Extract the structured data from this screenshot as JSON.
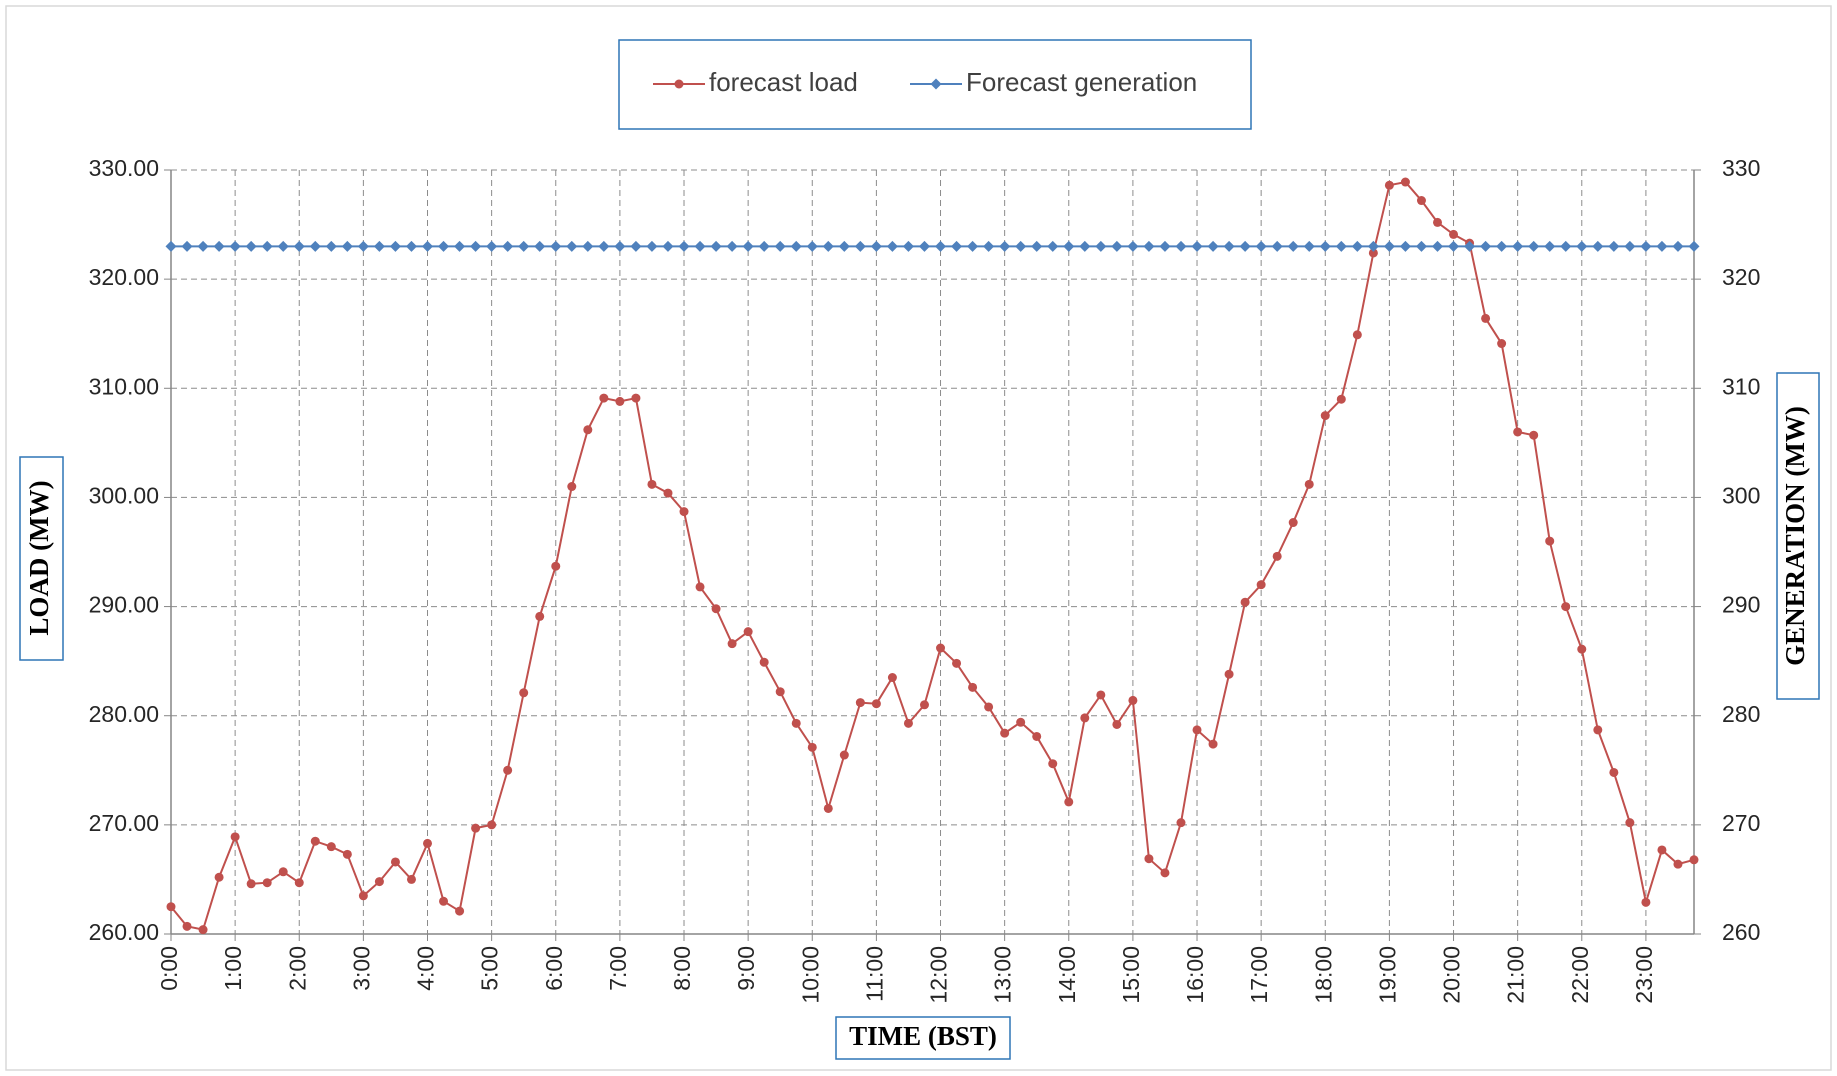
{
  "chart_data": {
    "type": "line",
    "x_label": "TIME (BST)",
    "y_label": "LOAD (MW)",
    "y2_label": "GENERATION (MW)",
    "categories": [
      "0:00",
      null,
      null,
      null,
      "1:00",
      null,
      null,
      null,
      "2:00",
      null,
      null,
      null,
      "3:00",
      null,
      null,
      null,
      "4:00",
      null,
      null,
      null,
      "5:00",
      null,
      null,
      null,
      "6:00",
      null,
      null,
      null,
      "7:00",
      null,
      null,
      null,
      "8:00",
      null,
      null,
      null,
      "9:00",
      null,
      null,
      null,
      "10:00",
      null,
      null,
      null,
      "11:00",
      null,
      null,
      null,
      "12:00",
      null,
      null,
      null,
      "13:00",
      null,
      null,
      null,
      "14:00",
      null,
      null,
      null,
      "15:00",
      null,
      null,
      null,
      "16:00",
      null,
      null,
      null,
      "17:00",
      null,
      null,
      null,
      "18:00",
      null,
      null,
      null,
      "19:00",
      null,
      null,
      null,
      "20:00",
      null,
      null,
      null,
      "21:00",
      null,
      null,
      null,
      "22:00",
      null,
      null,
      null,
      "23:00",
      null,
      null,
      null
    ],
    "series": [
      {
        "name": "forecast load",
        "color": "#c0504d",
        "marker": "circle",
        "values": [
          262.5,
          260.7,
          260.4,
          265.2,
          268.9,
          264.6,
          264.7,
          265.7,
          264.7,
          268.5,
          268.0,
          267.3,
          263.5,
          264.8,
          266.6,
          265.0,
          268.3,
          263.0,
          262.1,
          269.7,
          270.0,
          275.0,
          282.1,
          289.1,
          293.7,
          301.0,
          306.2,
          309.1,
          308.8,
          309.1,
          301.2,
          300.4,
          298.7,
          291.8,
          289.8,
          286.6,
          287.7,
          284.9,
          282.2,
          279.3,
          277.1,
          271.5,
          276.4,
          281.2,
          281.1,
          283.5,
          279.3,
          281.0,
          286.2,
          284.8,
          282.6,
          280.8,
          278.4,
          279.4,
          278.1,
          275.6,
          272.1,
          279.8,
          281.9,
          279.2,
          281.4,
          266.9,
          265.6,
          270.2,
          278.7,
          277.4,
          283.8,
          290.4,
          292.0,
          294.6,
          297.7,
          301.2,
          307.5,
          309.0,
          314.9,
          322.4,
          328.6,
          328.9,
          327.2,
          325.2,
          324.1,
          323.3,
          316.4,
          314.1,
          306.0,
          305.7,
          296.0,
          290.0,
          286.1,
          278.7,
          274.8,
          270.2,
          262.9,
          267.7,
          266.4,
          266.8
        ]
      },
      {
        "name": "Forecast generation",
        "color": "#4f81bd",
        "marker": "diamond",
        "axis": "y2",
        "values": [
          323,
          323,
          323,
          323,
          323,
          323,
          323,
          323,
          323,
          323,
          323,
          323,
          323,
          323,
          323,
          323,
          323,
          323,
          323,
          323,
          323,
          323,
          323,
          323,
          323,
          323,
          323,
          323,
          323,
          323,
          323,
          323,
          323,
          323,
          323,
          323,
          323,
          323,
          323,
          323,
          323,
          323,
          323,
          323,
          323,
          323,
          323,
          323,
          323,
          323,
          323,
          323,
          323,
          323,
          323,
          323,
          323,
          323,
          323,
          323,
          323,
          323,
          323,
          323,
          323,
          323,
          323,
          323,
          323,
          323,
          323,
          323,
          323,
          323,
          323,
          323,
          323,
          323,
          323,
          323,
          323,
          323,
          323,
          323,
          323,
          323,
          323,
          323,
          323,
          323,
          323,
          323,
          323,
          323,
          323,
          323
        ]
      }
    ],
    "ylim": [
      260,
      330
    ],
    "yticks": [
      {
        "value": 260,
        "label": "260.00"
      },
      {
        "value": 270,
        "label": "270.00"
      },
      {
        "value": 280,
        "label": "280.00"
      },
      {
        "value": 290,
        "label": "290.00"
      },
      {
        "value": 300,
        "label": "300.00"
      },
      {
        "value": 310,
        "label": "310.00"
      },
      {
        "value": 320,
        "label": "320.00"
      },
      {
        "value": 330,
        "label": "330.00"
      }
    ],
    "y2lim": [
      260,
      330
    ],
    "y2ticks": [
      260,
      270,
      280,
      290,
      300,
      310,
      320,
      330
    ],
    "grid": true,
    "legend": "top"
  }
}
